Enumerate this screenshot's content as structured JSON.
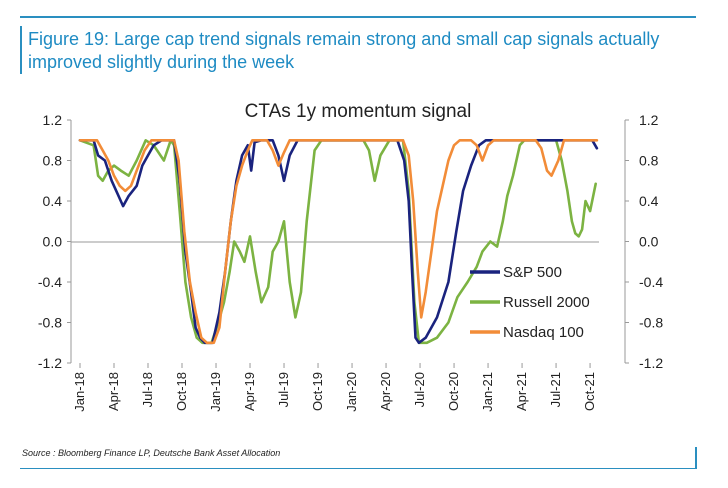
{
  "figure": {
    "title": "Figure 19: Large cap trend signals remain strong and small cap signals actually improved slightly during the week",
    "source": "Source : Bloomberg Finance LP, Deutsche Bank Asset Allocation"
  },
  "chart_data": {
    "type": "line",
    "title": "CTAs 1y momentum signal",
    "xlabel": "",
    "ylabel": "",
    "ylim": [
      -1.2,
      1.2
    ],
    "yticks": [
      "1.2",
      "0.8",
      "0.4",
      "0.0",
      "-0.4",
      "-0.8",
      "-1.2"
    ],
    "yticks_right": [
      "1.2",
      "0.8",
      "0.4",
      "0.0",
      "-0.4",
      "-0.8",
      "-1.2"
    ],
    "xlim": [
      0,
      45.7
    ],
    "xticks": [
      "Jan-18",
      "Apr-18",
      "Jul-18",
      "Oct-18",
      "Jan-19",
      "Apr-19",
      "Jul-19",
      "Oct-19",
      "Jan-20",
      "Apr-20",
      "Jul-20",
      "Oct-20",
      "Jan-21",
      "Apr-21",
      "Jul-21",
      "Oct-21"
    ],
    "legend_position": "lower-right",
    "series": [
      {
        "name": "S&P 500",
        "color": "#1a237e",
        "points": [
          [
            0,
            1
          ],
          [
            1.2,
            1
          ],
          [
            1.6,
            0.85
          ],
          [
            2.2,
            0.8
          ],
          [
            2.8,
            0.6
          ],
          [
            3.4,
            0.45
          ],
          [
            3.8,
            0.35
          ],
          [
            4.3,
            0.45
          ],
          [
            5,
            0.55
          ],
          [
            5.5,
            0.75
          ],
          [
            6,
            0.85
          ],
          [
            6.5,
            0.95
          ],
          [
            7.2,
            1
          ],
          [
            8.3,
            1
          ],
          [
            8.8,
            0.6
          ],
          [
            9.3,
            -0.1
          ],
          [
            9.8,
            -0.5
          ],
          [
            10.2,
            -0.85
          ],
          [
            10.6,
            -0.95
          ],
          [
            11,
            -1
          ],
          [
            11.7,
            -1
          ],
          [
            12.3,
            -0.7
          ],
          [
            12.8,
            -0.3
          ],
          [
            13.3,
            0.2
          ],
          [
            13.8,
            0.6
          ],
          [
            14.3,
            0.85
          ],
          [
            14.8,
            0.95
          ],
          [
            15.1,
            0.7
          ],
          [
            15.4,
            0.98
          ],
          [
            16,
            1
          ],
          [
            17,
            1
          ],
          [
            17.5,
            0.85
          ],
          [
            18,
            0.6
          ],
          [
            18.5,
            0.85
          ],
          [
            19.2,
            1
          ],
          [
            28,
            1
          ],
          [
            28.6,
            0.8
          ],
          [
            29,
            0.4
          ],
          [
            29.3,
            -0.3
          ],
          [
            29.6,
            -0.95
          ],
          [
            29.9,
            -1
          ],
          [
            30.5,
            -0.95
          ],
          [
            31.5,
            -0.75
          ],
          [
            32.5,
            -0.4
          ],
          [
            33.2,
            0.1
          ],
          [
            33.8,
            0.5
          ],
          [
            34.5,
            0.75
          ],
          [
            35.2,
            0.95
          ],
          [
            35.8,
            1
          ],
          [
            45.2,
            1
          ],
          [
            45.6,
            0.92
          ]
        ]
      },
      {
        "name": "Russell 2000",
        "color": "#7cb342",
        "points": [
          [
            0,
            1
          ],
          [
            1.2,
            0.95
          ],
          [
            1.6,
            0.65
          ],
          [
            2,
            0.6
          ],
          [
            2.5,
            0.7
          ],
          [
            3,
            0.75
          ],
          [
            3.6,
            0.7
          ],
          [
            4.3,
            0.65
          ],
          [
            5,
            0.8
          ],
          [
            5.8,
            1
          ],
          [
            6.5,
            0.95
          ],
          [
            7.4,
            0.8
          ],
          [
            8,
            1
          ],
          [
            8.3,
            0.95
          ],
          [
            8.8,
            0.3
          ],
          [
            9.3,
            -0.4
          ],
          [
            9.8,
            -0.75
          ],
          [
            10.3,
            -0.95
          ],
          [
            10.8,
            -1
          ],
          [
            11.6,
            -1
          ],
          [
            12.2,
            -0.8
          ],
          [
            12.7,
            -0.6
          ],
          [
            13.2,
            -0.3
          ],
          [
            13.6,
            0
          ],
          [
            14.1,
            -0.1
          ],
          [
            14.5,
            -0.2
          ],
          [
            15,
            0.05
          ],
          [
            15.5,
            -0.3
          ],
          [
            16,
            -0.6
          ],
          [
            16.6,
            -0.45
          ],
          [
            17,
            -0.1
          ],
          [
            17.5,
            0
          ],
          [
            18,
            0.2
          ],
          [
            18.5,
            -0.4
          ],
          [
            19,
            -0.75
          ],
          [
            19.5,
            -0.5
          ],
          [
            20,
            0.2
          ],
          [
            20.7,
            0.9
          ],
          [
            21.3,
            1
          ],
          [
            25,
            1
          ],
          [
            25.5,
            0.9
          ],
          [
            26,
            0.6
          ],
          [
            26.5,
            0.85
          ],
          [
            27.3,
            1
          ],
          [
            28.5,
            1
          ],
          [
            29,
            0.5
          ],
          [
            29.5,
            -0.6
          ],
          [
            29.9,
            -1
          ],
          [
            30.6,
            -1
          ],
          [
            31.5,
            -0.95
          ],
          [
            32.5,
            -0.8
          ],
          [
            33.3,
            -0.55
          ],
          [
            34.2,
            -0.4
          ],
          [
            35,
            -0.25
          ],
          [
            35.5,
            -0.1
          ],
          [
            36.2,
            0
          ],
          [
            36.8,
            -0.05
          ],
          [
            37.3,
            0.2
          ],
          [
            37.7,
            0.45
          ],
          [
            38.2,
            0.65
          ],
          [
            38.8,
            0.95
          ],
          [
            39.2,
            1
          ],
          [
            42,
            1
          ],
          [
            42.5,
            0.8
          ],
          [
            43,
            0.5
          ],
          [
            43.4,
            0.2
          ],
          [
            43.7,
            0.08
          ],
          [
            44,
            0.05
          ],
          [
            44.3,
            0.12
          ],
          [
            44.6,
            0.4
          ],
          [
            45,
            0.3
          ],
          [
            45.5,
            0.57
          ]
        ]
      },
      {
        "name": "Nasdaq 100",
        "color": "#f28c38",
        "points": [
          [
            0,
            1
          ],
          [
            1.5,
            1
          ],
          [
            2,
            0.9
          ],
          [
            2.5,
            0.8
          ],
          [
            3,
            0.65
          ],
          [
            3.5,
            0.55
          ],
          [
            4,
            0.5
          ],
          [
            4.5,
            0.55
          ],
          [
            5,
            0.7
          ],
          [
            5.7,
            0.9
          ],
          [
            6.3,
            1
          ],
          [
            8.3,
            1
          ],
          [
            8.7,
            0.8
          ],
          [
            9.2,
            0.1
          ],
          [
            9.7,
            -0.4
          ],
          [
            10.2,
            -0.7
          ],
          [
            10.7,
            -0.95
          ],
          [
            11.2,
            -1
          ],
          [
            11.8,
            -1
          ],
          [
            12.3,
            -0.85
          ],
          [
            12.8,
            -0.3
          ],
          [
            13.3,
            0.2
          ],
          [
            13.8,
            0.55
          ],
          [
            14.3,
            0.75
          ],
          [
            14.8,
            0.9
          ],
          [
            15.2,
            1
          ],
          [
            16.5,
            1
          ],
          [
            17,
            0.9
          ],
          [
            17.5,
            0.75
          ],
          [
            18,
            0.88
          ],
          [
            18.5,
            1
          ],
          [
            28.5,
            1
          ],
          [
            29,
            0.85
          ],
          [
            29.4,
            0.4
          ],
          [
            29.8,
            -0.3
          ],
          [
            30.1,
            -0.75
          ],
          [
            30.5,
            -0.5
          ],
          [
            31,
            -0.1
          ],
          [
            31.5,
            0.3
          ],
          [
            32,
            0.55
          ],
          [
            32.5,
            0.8
          ],
          [
            33,
            0.95
          ],
          [
            33.5,
            1
          ],
          [
            34.5,
            1
          ],
          [
            35,
            0.95
          ],
          [
            35.5,
            0.8
          ],
          [
            36,
            0.95
          ],
          [
            36.5,
            1
          ],
          [
            40.2,
            1
          ],
          [
            40.7,
            0.92
          ],
          [
            41.2,
            0.7
          ],
          [
            41.6,
            0.65
          ],
          [
            42.2,
            0.8
          ],
          [
            42.7,
            1
          ],
          [
            45.6,
            1
          ]
        ]
      }
    ]
  }
}
